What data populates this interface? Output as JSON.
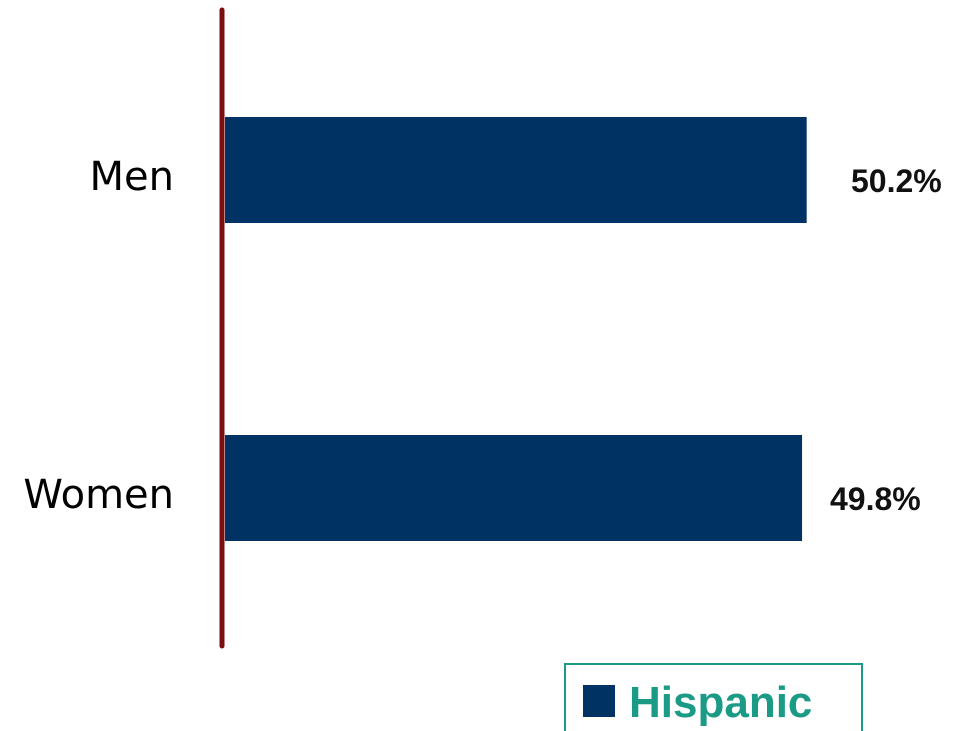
{
  "chart_data": {
    "type": "bar",
    "orientation": "horizontal",
    "categories": [
      "Men",
      "Women"
    ],
    "series": [
      {
        "name": "Hispanic",
        "values": [
          50.2,
          49.8
        ],
        "labels": [
          "50.2%",
          "49.8%"
        ]
      }
    ],
    "title": "",
    "xlabel": "",
    "ylabel": "",
    "xlim": [
      0,
      63
    ],
    "grid": false,
    "legend_position": "bottom-right"
  },
  "colors": {
    "bar": "#003264",
    "axis": "#7a0e10",
    "legend_text": "#1b9a86",
    "legend_border": "#1b9a86"
  }
}
